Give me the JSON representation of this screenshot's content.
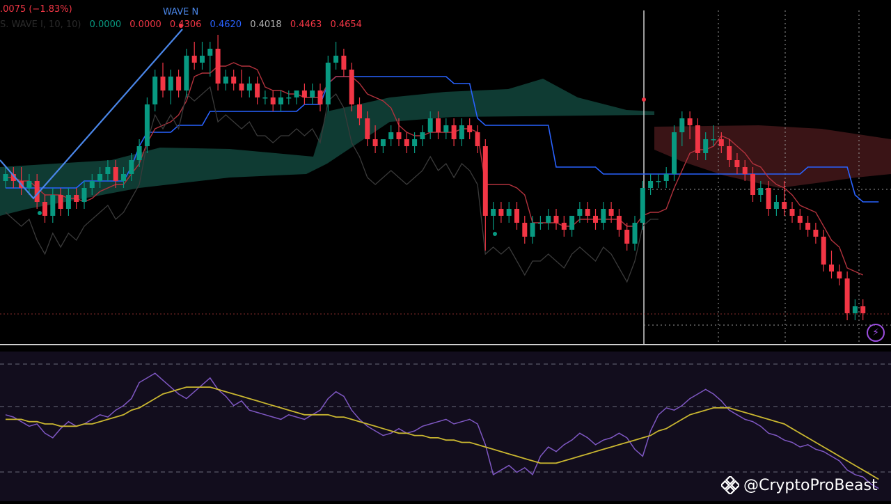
{
  "legend": {
    "change": ".0075 (−1.83%)",
    "change_color": "#f23645",
    "indicator_name": "S. WAVE I, 10, 10)",
    "indicator_color": "#2a2a2a",
    "values": [
      {
        "text": "0.0000",
        "color": "#089981"
      },
      {
        "text": "0.0000",
        "color": "#f23645"
      },
      {
        "text": "0.4306",
        "color": "#f23645"
      },
      {
        "text": "0.4620",
        "color": "#2962ff"
      },
      {
        "text": "0.4018",
        "color": "#b0b0b0"
      },
      {
        "text": "0.4463",
        "color": "#f23645"
      },
      {
        "text": "0.4654",
        "color": "#f23645"
      }
    ]
  },
  "wave_label": "WAVE N",
  "watermark": "@CryptoProBeast",
  "colors": {
    "up": "#089981",
    "down": "#f23645",
    "kijun": "#2962ff",
    "tenkan": "#b2323d",
    "lagging": "#3a3a3a",
    "cloud_bull": "#0f3b33",
    "cloud_bear": "#3a1416",
    "rsi": "#7e57c2",
    "rsi_ma": "#c9b630",
    "wave": "#4a86e8",
    "rsi_bg": "#120d1d"
  },
  "icons": {
    "alert_icon": "lightning-icon",
    "logo_icon": "diamond-logo-icon"
  },
  "candles": [
    [
      0.5,
      0.52,
      0.49,
      0.51
    ],
    [
      0.51,
      0.52,
      0.49,
      0.5
    ],
    [
      0.5,
      0.52,
      0.48,
      0.49
    ],
    [
      0.49,
      0.51,
      0.48,
      0.5
    ],
    [
      0.5,
      0.51,
      0.46,
      0.47
    ],
    [
      0.47,
      0.48,
      0.44,
      0.45
    ],
    [
      0.45,
      0.49,
      0.44,
      0.48
    ],
    [
      0.48,
      0.49,
      0.45,
      0.46
    ],
    [
      0.46,
      0.49,
      0.45,
      0.48
    ],
    [
      0.48,
      0.49,
      0.46,
      0.47
    ],
    [
      0.47,
      0.5,
      0.46,
      0.49
    ],
    [
      0.49,
      0.51,
      0.48,
      0.5
    ],
    [
      0.5,
      0.52,
      0.49,
      0.51
    ],
    [
      0.51,
      0.53,
      0.5,
      0.52
    ],
    [
      0.52,
      0.53,
      0.49,
      0.5
    ],
    [
      0.5,
      0.52,
      0.49,
      0.51
    ],
    [
      0.51,
      0.54,
      0.5,
      0.53
    ],
    [
      0.53,
      0.56,
      0.52,
      0.55
    ],
    [
      0.55,
      0.62,
      0.54,
      0.61
    ],
    [
      0.61,
      0.66,
      0.6,
      0.65
    ],
    [
      0.65,
      0.67,
      0.62,
      0.63
    ],
    [
      0.63,
      0.66,
      0.61,
      0.65
    ],
    [
      0.65,
      0.66,
      0.62,
      0.63
    ],
    [
      0.63,
      0.69,
      0.62,
      0.68
    ],
    [
      0.68,
      0.7,
      0.66,
      0.67
    ],
    [
      0.67,
      0.7,
      0.66,
      0.68
    ],
    [
      0.68,
      0.7,
      0.65,
      0.69
    ],
    [
      0.69,
      0.71,
      0.63,
      0.64
    ],
    [
      0.64,
      0.66,
      0.63,
      0.65
    ],
    [
      0.65,
      0.66,
      0.63,
      0.64
    ],
    [
      0.64,
      0.66,
      0.62,
      0.63
    ],
    [
      0.63,
      0.65,
      0.62,
      0.64
    ],
    [
      0.64,
      0.65,
      0.61,
      0.62
    ],
    [
      0.62,
      0.63,
      0.61,
      0.62
    ],
    [
      0.62,
      0.63,
      0.6,
      0.61
    ],
    [
      0.61,
      0.63,
      0.6,
      0.62
    ],
    [
      0.62,
      0.63,
      0.61,
      0.62
    ],
    [
      0.62,
      0.63,
      0.61,
      0.63
    ],
    [
      0.63,
      0.64,
      0.61,
      0.62
    ],
    [
      0.62,
      0.64,
      0.61,
      0.63
    ],
    [
      0.63,
      0.64,
      0.6,
      0.61
    ],
    [
      0.61,
      0.68,
      0.6,
      0.67
    ],
    [
      0.67,
      0.7,
      0.66,
      0.68
    ],
    [
      0.68,
      0.69,
      0.65,
      0.66
    ],
    [
      0.66,
      0.67,
      0.6,
      0.61
    ],
    [
      0.61,
      0.62,
      0.58,
      0.59
    ],
    [
      0.59,
      0.6,
      0.55,
      0.56
    ],
    [
      0.56,
      0.58,
      0.54,
      0.55
    ],
    [
      0.55,
      0.56,
      0.54,
      0.56
    ],
    [
      0.56,
      0.58,
      0.55,
      0.57
    ],
    [
      0.57,
      0.59,
      0.55,
      0.56
    ],
    [
      0.56,
      0.57,
      0.54,
      0.55
    ],
    [
      0.55,
      0.57,
      0.54,
      0.56
    ],
    [
      0.56,
      0.58,
      0.55,
      0.57
    ],
    [
      0.57,
      0.6,
      0.56,
      0.59
    ],
    [
      0.59,
      0.6,
      0.56,
      0.57
    ],
    [
      0.57,
      0.59,
      0.56,
      0.58
    ],
    [
      0.58,
      0.59,
      0.55,
      0.56
    ],
    [
      0.56,
      0.59,
      0.55,
      0.58
    ],
    [
      0.58,
      0.59,
      0.56,
      0.57
    ],
    [
      0.57,
      0.58,
      0.54,
      0.55
    ],
    [
      0.55,
      0.56,
      0.4,
      0.45
    ],
    [
      0.45,
      0.47,
      0.43,
      0.46
    ],
    [
      0.46,
      0.47,
      0.44,
      0.45
    ],
    [
      0.45,
      0.47,
      0.44,
      0.46
    ],
    [
      0.46,
      0.47,
      0.43,
      0.44
    ],
    [
      0.44,
      0.45,
      0.41,
      0.42
    ],
    [
      0.42,
      0.45,
      0.41,
      0.44
    ],
    [
      0.44,
      0.45,
      0.43,
      0.44
    ],
    [
      0.44,
      0.46,
      0.43,
      0.45
    ],
    [
      0.45,
      0.46,
      0.43,
      0.44
    ],
    [
      0.44,
      0.45,
      0.42,
      0.43
    ],
    [
      0.43,
      0.45,
      0.42,
      0.45
    ],
    [
      0.45,
      0.47,
      0.44,
      0.46
    ],
    [
      0.46,
      0.47,
      0.44,
      0.45
    ],
    [
      0.45,
      0.46,
      0.43,
      0.44
    ],
    [
      0.44,
      0.47,
      0.43,
      0.46
    ],
    [
      0.46,
      0.47,
      0.44,
      0.45
    ],
    [
      0.45,
      0.46,
      0.42,
      0.43
    ],
    [
      0.43,
      0.44,
      0.4,
      0.41
    ],
    [
      0.41,
      0.45,
      0.4,
      0.44
    ],
    [
      0.44,
      0.5,
      0.43,
      0.49
    ],
    [
      0.49,
      0.51,
      0.48,
      0.5
    ],
    [
      0.5,
      0.51,
      0.49,
      0.5
    ],
    [
      0.5,
      0.52,
      0.49,
      0.51
    ],
    [
      0.51,
      0.58,
      0.5,
      0.57
    ],
    [
      0.57,
      0.6,
      0.55,
      0.59
    ],
    [
      0.59,
      0.6,
      0.56,
      0.58
    ],
    [
      0.58,
      0.59,
      0.53,
      0.54
    ],
    [
      0.54,
      0.57,
      0.53,
      0.56
    ],
    [
      0.56,
      0.58,
      0.55,
      0.56
    ],
    [
      0.56,
      0.57,
      0.54,
      0.55
    ],
    [
      0.55,
      0.56,
      0.52,
      0.53
    ],
    [
      0.53,
      0.54,
      0.51,
      0.52
    ],
    [
      0.52,
      0.53,
      0.5,
      0.51
    ],
    [
      0.51,
      0.52,
      0.47,
      0.48
    ],
    [
      0.48,
      0.5,
      0.47,
      0.49
    ],
    [
      0.49,
      0.5,
      0.45,
      0.46
    ],
    [
      0.46,
      0.48,
      0.45,
      0.47
    ],
    [
      0.47,
      0.5,
      0.45,
      0.46
    ],
    [
      0.46,
      0.47,
      0.44,
      0.45
    ],
    [
      0.45,
      0.46,
      0.43,
      0.44
    ],
    [
      0.44,
      0.45,
      0.42,
      0.43
    ],
    [
      0.43,
      0.44,
      0.41,
      0.42
    ],
    [
      0.42,
      0.43,
      0.37,
      0.38
    ],
    [
      0.38,
      0.4,
      0.36,
      0.37
    ],
    [
      0.37,
      0.38,
      0.35,
      0.36
    ],
    [
      0.36,
      0.37,
      0.3,
      0.31
    ],
    [
      0.31,
      0.33,
      0.3,
      0.32
    ],
    [
      0.32,
      0.33,
      0.3,
      0.31
    ]
  ],
  "kijun": [
    0.49,
    0.49,
    0.49,
    0.49,
    0.49,
    0.49,
    0.49,
    0.49,
    0.49,
    0.49,
    0.5,
    0.5,
    0.5,
    0.5,
    0.5,
    0.5,
    0.52,
    0.55,
    0.57,
    0.57,
    0.57,
    0.57,
    0.58,
    0.58,
    0.58,
    0.58,
    0.6,
    0.6,
    0.6,
    0.6,
    0.6,
    0.6,
    0.6,
    0.6,
    0.6,
    0.6,
    0.6,
    0.6,
    0.61,
    0.61,
    0.61,
    0.64,
    0.65,
    0.65,
    0.65,
    0.65,
    0.65,
    0.65,
    0.65,
    0.65,
    0.65,
    0.65,
    0.65,
    0.65,
    0.65,
    0.65,
    0.65,
    0.64,
    0.64,
    0.64,
    0.59,
    0.58,
    0.58,
    0.58,
    0.58,
    0.58,
    0.58,
    0.58,
    0.58,
    0.58,
    0.52,
    0.52,
    0.52,
    0.52,
    0.52,
    0.52,
    0.51,
    0.51,
    0.51,
    0.51,
    0.51,
    0.51,
    0.51,
    0.51,
    0.51,
    0.51,
    0.51,
    0.51,
    0.51,
    0.51,
    0.51,
    0.51,
    0.51,
    0.51,
    0.51,
    0.51,
    0.51,
    0.51,
    0.51,
    0.51,
    0.51,
    0.51,
    0.52,
    0.52,
    0.52,
    0.52,
    0.52,
    0.52,
    0.48,
    0.47,
    0.47,
    0.47
  ],
  "rsi": [
    48,
    47,
    45,
    43,
    44,
    40,
    38,
    42,
    45,
    43,
    44,
    46,
    48,
    47,
    50,
    52,
    55,
    62,
    64,
    66,
    63,
    60,
    57,
    55,
    58,
    61,
    64,
    59,
    56,
    52,
    54,
    50,
    49,
    48,
    47,
    46,
    48,
    47,
    46,
    48,
    50,
    55,
    58,
    56,
    50,
    46,
    43,
    41,
    39,
    40,
    42,
    40,
    41,
    43,
    44,
    45,
    46,
    44,
    45,
    46,
    44,
    35,
    22,
    24,
    26,
    23,
    25,
    22,
    30,
    34,
    32,
    35,
    37,
    40,
    38,
    35,
    37,
    38,
    40,
    38,
    33,
    30,
    41,
    48,
    51,
    50,
    52,
    55,
    57,
    59,
    57,
    54,
    50,
    48,
    46,
    45,
    43,
    40,
    39,
    37,
    36,
    34,
    35,
    33,
    32,
    30,
    28,
    24,
    22,
    21,
    18,
    16
  ],
  "rsi_ma": [
    46,
    46,
    46,
    45,
    45,
    44,
    44,
    43,
    43,
    43,
    44,
    44,
    45,
    46,
    47,
    48,
    50,
    51,
    53,
    55,
    57,
    58,
    59,
    60,
    60,
    60,
    60,
    59,
    58,
    57,
    56,
    55,
    54,
    53,
    52,
    51,
    50,
    49,
    48,
    48,
    48,
    48,
    47,
    47,
    46,
    45,
    44,
    43,
    42,
    41,
    40,
    40,
    39,
    39,
    38,
    38,
    37,
    37,
    36,
    36,
    35,
    34,
    33,
    32,
    31,
    30,
    29,
    28,
    27,
    27,
    27,
    28,
    29,
    30,
    31,
    32,
    33,
    34,
    35,
    36,
    37,
    38,
    39,
    41,
    42,
    44,
    46,
    48,
    49,
    50,
    51,
    51,
    51,
    50,
    49,
    48,
    47,
    46,
    45,
    44,
    42,
    40,
    38,
    36,
    34,
    32,
    30,
    28,
    26,
    24,
    22,
    20
  ]
}
